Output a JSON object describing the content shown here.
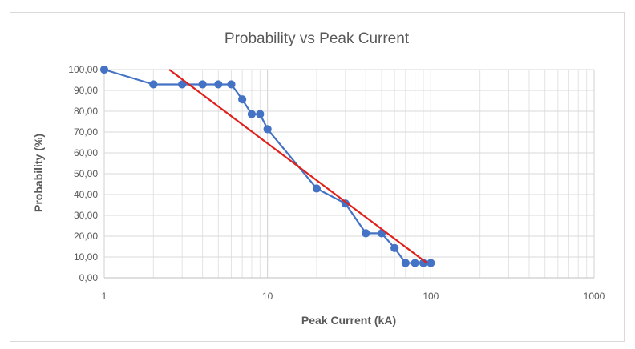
{
  "chart_data": {
    "type": "scatter",
    "title": "Probability vs Peak Current",
    "xlabel": "Peak Current (kA)",
    "ylabel": "Probability (%)",
    "x_scale": "log",
    "xlim": [
      1,
      1000
    ],
    "ylim": [
      0,
      100
    ],
    "x_ticks": [
      1,
      10,
      100,
      1000
    ],
    "x_tick_labels": [
      "1",
      "10",
      "100",
      "1000"
    ],
    "y_ticks": [
      0,
      10,
      20,
      30,
      40,
      50,
      60,
      70,
      80,
      90,
      100
    ],
    "y_tick_labels": [
      "0,00",
      "10,00",
      "20,00",
      "30,00",
      "40,00",
      "50,00",
      "60,00",
      "70,00",
      "80,00",
      "90,00",
      "100,00"
    ],
    "grid": true,
    "legend": "none",
    "series": [
      {
        "kind": "line-with-markers",
        "color": "#4472c4",
        "x": [
          1,
          2,
          3,
          4,
          5,
          6,
          7,
          8,
          9,
          10,
          20,
          30,
          40,
          50,
          60,
          70,
          80,
          90,
          100
        ],
        "y": [
          100,
          92.9,
          92.9,
          92.9,
          92.9,
          92.9,
          85.7,
          78.6,
          78.6,
          71.4,
          42.9,
          35.7,
          21.4,
          21.4,
          14.3,
          7.1,
          7.1,
          7.1,
          7.1
        ]
      },
      {
        "kind": "trendline",
        "color": "#e0201b",
        "x": [
          2.5,
          95
        ],
        "y": [
          100,
          7
        ]
      }
    ]
  }
}
